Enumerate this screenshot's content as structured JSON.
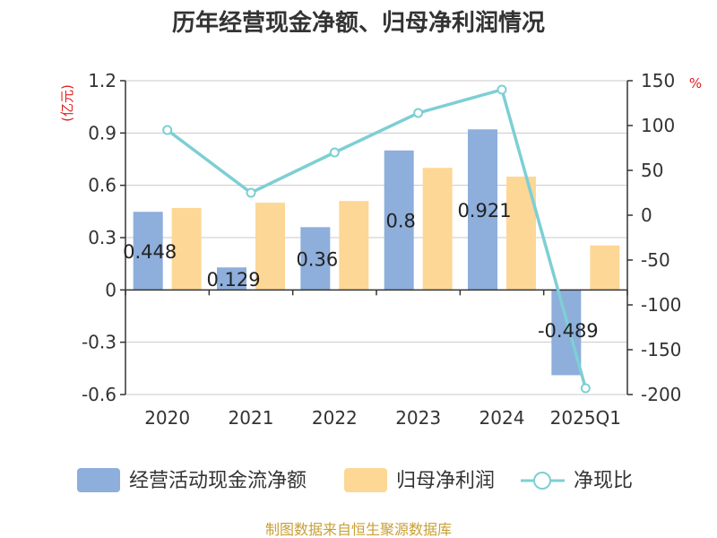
{
  "chart_data": {
    "type": "bar",
    "title": "历年经营现金净额、归母净利润情况",
    "categories": [
      "2020",
      "2021",
      "2022",
      "2023",
      "2024",
      "2025Q1"
    ],
    "left_axis": {
      "unit": "(亿元)",
      "ylim": [
        -0.6,
        1.2
      ],
      "ticks": [
        "1.2",
        "0.9",
        "0.6",
        "0.3",
        "0",
        "-0.3",
        "-0.6"
      ]
    },
    "right_axis": {
      "unit": "%",
      "ylim": [
        -200,
        150
      ],
      "ticks": [
        "150",
        "100",
        "50",
        "0",
        "-50",
        "-100",
        "-150",
        "-200"
      ]
    },
    "series": [
      {
        "name": "经营活动现金流净额",
        "kind": "bar",
        "axis": "left",
        "color": "#8eaedb",
        "values": [
          0.448,
          0.129,
          0.36,
          0.8,
          0.921,
          -0.489
        ],
        "labels": [
          "0.448",
          "0.129",
          "0.36",
          "0.8",
          "0.921",
          "-0.489"
        ]
      },
      {
        "name": "归母净利润",
        "kind": "bar",
        "axis": "left",
        "color": "#fdd796",
        "values": [
          0.47,
          0.5,
          0.51,
          0.7,
          0.65,
          0.255
        ]
      },
      {
        "name": "净现比",
        "kind": "line",
        "axis": "right",
        "color": "#7dcfd4",
        "values": [
          95,
          25,
          70,
          114,
          140,
          -193
        ]
      }
    ],
    "grid": true,
    "legend_position": "bottom"
  },
  "source": "制图数据来自恒生聚源数据库"
}
